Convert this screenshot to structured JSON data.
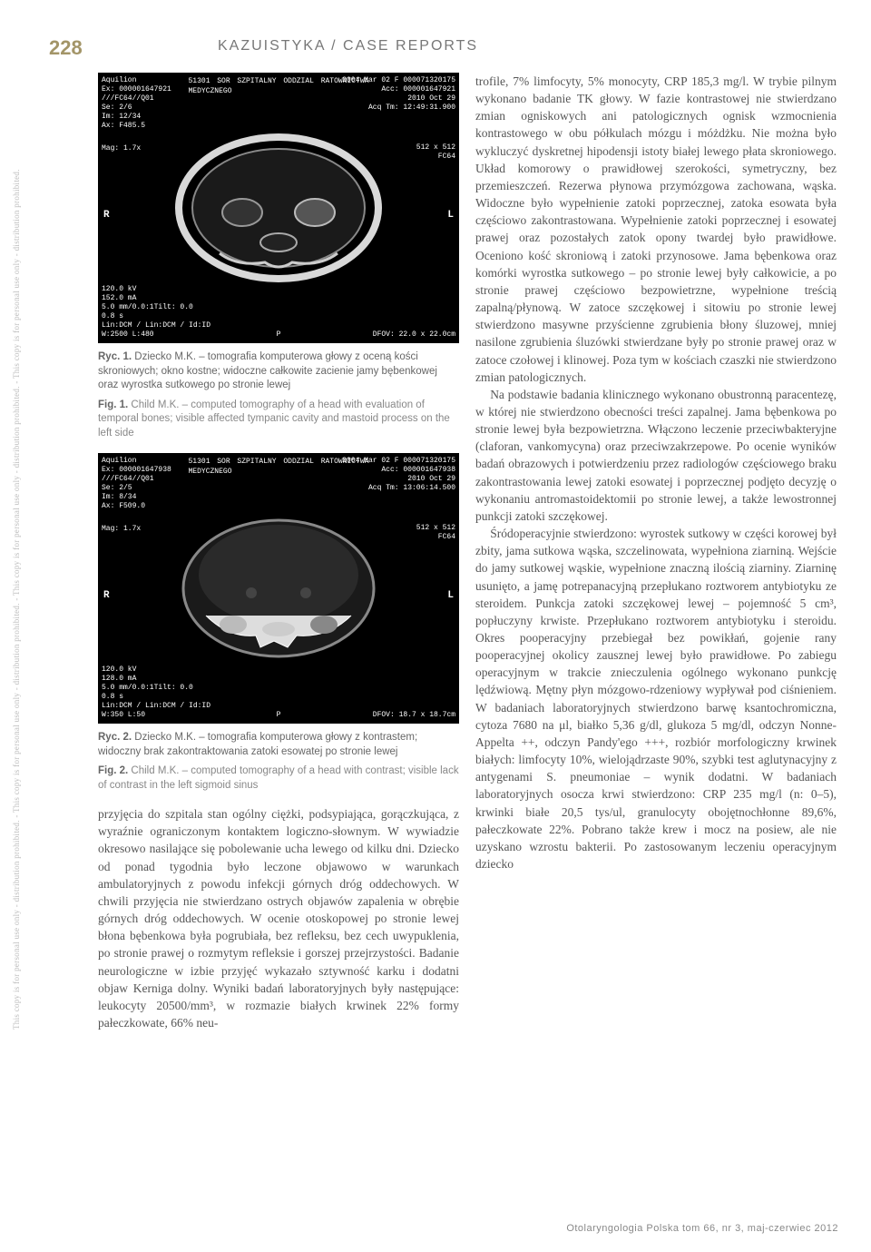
{
  "side_watermark": "This copy is for personal use only - distribution prohibited.    -    This copy is for personal use only - distribution prohibited.    -    This copy is for personal use only - distribution prohibited.    -    This copy is for personal use only - distribution prohibited.",
  "page_number": "228",
  "section_title": "KAZUISTYKA / CASE REPORTS",
  "figures": {
    "fig1": {
      "overlay": {
        "top_left": "Aquilion\nEx: 000001647921\n///FC64//Q01\nSe: 2/6\nIm: 12/34\nAx: F485.5",
        "top_center": "51301 SOR SZPITALNY ODDZIAL RATOWNICTWA MEDYCZNEGO",
        "top_right": "2004 Mar 02  F  000071320175\nAcc: 000001647921\n2010 Oct 29\nAcq Tm: 12:49:31.900",
        "mid_right": "512 x 512\nFC64",
        "mag": "Mag: 1.7x",
        "bot_left": "120.0 kV\n152.0 mA\n5.0 mm/0.0:1Tilt: 0.0\n0.8 s\nLin:DCM / Lin:DCM / Id:ID\nW:2500 L:480",
        "bot_center": "P",
        "bot_right": "DFOV: 22.0 x 22.0cm"
      },
      "caption_pl_lead": "Ryc. 1.",
      "caption_pl": " Dziecko M.K. – tomografia komputerowa głowy z oceną kości skroniowych; okno kostne; widoczne całkowite zacienie jamy bębenkowej oraz wyrostka sutkowego po stronie lewej",
      "caption_en_lead": "Fig. 1.",
      "caption_en": " Child M.K. – computed tomography of a head with evaluation of temporal bones; visible affected tympanic cavity and mastoid process on the left side"
    },
    "fig2": {
      "overlay": {
        "top_left": "Aquilion\nEx: 000001647938\n///FC64//Q01\nSe: 2/5\nIm: 8/34\nAx: F509.0",
        "top_center": "51301 SOR SZPITALNY ODDZIAL RATOWNICTWA MEDYCZNEGO",
        "top_right": "2004 Mar 02  F  000071320175\nAcc: 000001647938\n2010 Oct 29\nAcq Tm: 13:06:14.500",
        "mid_right": "512 x 512\nFC64",
        "mag": "Mag: 1.7x",
        "bot_left": "120.0 kV\n128.0 mA\n5.0 mm/0.0:1Tilt: 0.0\n0.8 s\nLin:DCM / Lin:DCM / Id:ID\nW:350 L:50",
        "bot_center": "P",
        "bot_right": "DFOV: 18.7 x 18.7cm"
      },
      "caption_pl_lead": "Ryc. 2.",
      "caption_pl": " Dziecko M.K. – tomografia komputerowa głowy z kontrastem; widoczny brak zakontraktowania zatoki esowatej po stronie lewej",
      "caption_en_lead": "Fig. 2.",
      "caption_en": " Child M.K. – computed tomography of a head with contrast; visible lack of contrast in the left sigmoid sinus"
    }
  },
  "left_column_text": "przyjęcia do szpitala stan ogólny ciężki, podsypiająca, gorączkująca, z wyraźnie ograniczonym kontaktem logiczno-słownym. W wywiadzie okresowo nasilające się pobolewanie ucha lewego od kilku dni. Dziecko od ponad tygodnia było leczone objawowo w warunkach ambulatoryjnych z powodu infekcji górnych dróg oddechowych. W chwili przyjęcia nie stwierdzano ostrych objawów zapalenia w obrębie górnych dróg oddechowych. W ocenie otoskopowej po stronie lewej błona bębenkowa była pogrubiała, bez refleksu, bez cech uwypuklenia, po stronie prawej o rozmytym refleksie i gorszej przejrzystości. Badanie neurologiczne w izbie przyjęć wykazało sztywność karku i dodatni objaw Kerniga dolny. Wyniki badań laboratoryjnych były następujące: leukocyty 20500/mm³, w rozmazie białych krwinek 22% formy pałeczkowate, 66% neu-",
  "right_column_text_p1": "trofile, 7% limfocyty, 5% monocyty, CRP 185,3 mg/l. W trybie pilnym wykonano badanie TK głowy. W fazie kontrastowej nie stwierdzano zmian ogniskowych ani patologicznych ognisk wzmocnienia kontrastowego w obu półkulach mózgu i móżdżku. Nie można było wykluczyć dyskretnej hipodensji istoty białej lewego płata skroniowego. Układ komorowy o prawidłowej szerokości, symetryczny, bez przemieszczeń. Rezerwa płynowa przymózgowa zachowana, wąska. Widoczne było wypełnienie zatoki poprzecznej, zatoka esowata była częściowo zakontrastowana. Wypełnienie zatoki poprzecznej i esowatej prawej oraz pozostałych zatok opony twardej było prawidłowe. Oceniono kość skroniową i zatoki przynosowe. Jama bębenkowa oraz komórki wyrostka sutkowego – po stronie lewej były całkowicie, a po stronie prawej częściowo bezpowietrzne, wypełnione treścią zapalną/płynową. W zatoce szczękowej i sitowiu po stronie lewej stwierdzono masywne przyścienne zgrubienia błony śluzowej, mniej nasilone zgrubienia śluzówki stwierdzane były po stronie prawej oraz w zatoce czołowej i klinowej. Poza tym w kościach czaszki nie stwierdzono zmian patologicznych.",
  "right_column_text_p2": "Na podstawie badania klinicznego wykonano obustronną paracentezę, w której nie stwierdzono obecności treści zapalnej. Jama bębenkowa po stronie lewej była bezpowietrzna. Włączono leczenie przeciwbakteryjne (claforan, vankomycyna) oraz przeciwzakrzepowe. Po ocenie wyników badań obrazowych i potwierdzeniu przez radiologów częściowego braku zakontrastowania lewej zatoki esowatej i poprzecznej podjęto decyzję o wykonaniu antromastoidektomii po stronie lewej, a także lewostronnej punkcji zatoki szczękowej.",
  "right_column_text_p3": "Śródoperacyjnie stwierdzono: wyrostek sutkowy w części korowej był zbity, jama sutkowa wąska, szczelinowata, wypełniona ziarniną. Wejście do jamy sutkowej wąskie, wypełnione znaczną ilością ziarniny. Ziarninę usunięto, a jamę potrepanacyjną przepłukano roztworem antybiotyku ze steroidem. Punkcja zatoki szczękowej lewej – pojemność 5 cm³, popłuczyny krwiste. Przepłukano roztworem antybiotyku i steroidu. Okres pooperacyjny przebiegał bez powikłań, gojenie rany pooperacyjnej okolicy zausznej lewej było prawidłowe. Po zabiegu operacyjnym w trakcie znieczulenia ogólnego wykonano punkcję lędźwiową. Mętny płyn mózgowo-rdzeniowy wypływał pod ciśnieniem. W badaniach laboratoryjnych stwierdzono barwę ksantochromiczna, cytoza 7680 na μl, białko 5,36 g/dl, glukoza 5 mg/dl, odczyn Nonne-Appelta ++, odczyn Pandy'ego +++, rozbiór morfologiczny krwinek białych: limfocyty 10%, wielojądrzaste 90%, szybki test aglutynacyjny z antygenami S. pneumoniae – wynik dodatni. W badaniach laboratoryjnych osocza krwi stwierdzono: CRP 235 mg/l (n: 0–5), krwinki białe 20,5 tys/ul, granulocyty obojętnochłonne 89,6%, pałeczkowate 22%. Pobrano także krew i mocz na posiew, ale nie uzyskano wzrostu bakterii. Po zastosowanym leczeniu operacyjnym dziecko",
  "footer": "Otolaryngologia Polska tom 66, nr 3, maj-czerwiec 2012"
}
